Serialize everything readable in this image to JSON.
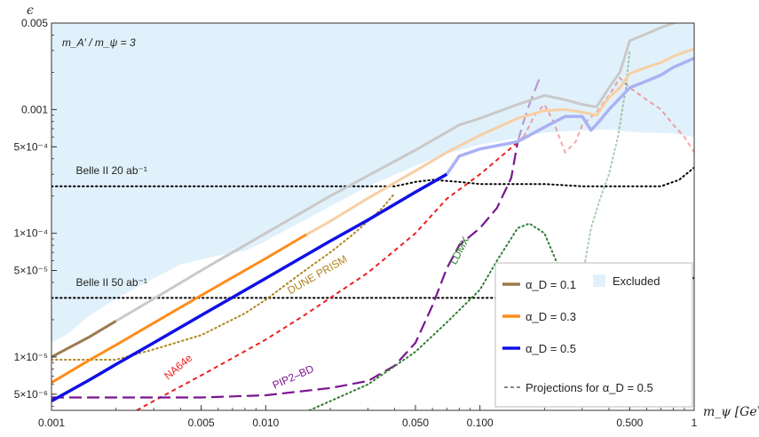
{
  "chart_data": {
    "type": "line",
    "xscale": "log",
    "yscale": "log",
    "xlim": [
      0.001,
      1
    ],
    "ylim": [
      3.7e-06,
      0.005
    ],
    "xlabel": "m_ψ [GeV]",
    "ylabel": "ϵ",
    "x_ticks": [
      {
        "v": 0.001,
        "label": "0.001"
      },
      {
        "v": 0.005,
        "label": "0.005"
      },
      {
        "v": 0.01,
        "label": "0.010"
      },
      {
        "v": 0.05,
        "label": "0.050"
      },
      {
        "v": 0.1,
        "label": "0.100"
      },
      {
        "v": 0.5,
        "label": "0.500"
      },
      {
        "v": 1,
        "label": "1"
      }
    ],
    "y_ticks": [
      {
        "v": 5e-06,
        "label": "5×10⁻⁶"
      },
      {
        "v": 1e-05,
        "label": "1×10⁻⁵"
      },
      {
        "v": 5e-05,
        "label": "5×10⁻⁵"
      },
      {
        "v": 0.0001,
        "label": "1×10⁻⁴"
      },
      {
        "v": 0.0005,
        "label": "5×10⁻⁴"
      },
      {
        "v": 0.001,
        "label": "0.001"
      },
      {
        "v": 0.005,
        "label": "0.005"
      }
    ],
    "mass_ratio_label": "m_A′ / m_ψ = 3",
    "excluded": {
      "color": "#e1f1fb",
      "boundary": [
        [
          0.001,
          1.3e-05
        ],
        [
          0.0012,
          1.55e-05
        ],
        [
          0.0015,
          2.15e-05
        ],
        [
          0.002,
          2.95e-05
        ],
        [
          0.003,
          4.3e-05
        ],
        [
          0.004,
          5.6e-05
        ],
        [
          0.006,
          6.6e-05
        ],
        [
          0.008,
          7.2e-05
        ],
        [
          0.01,
          8.65e-05
        ],
        [
          0.015,
          0.000126
        ],
        [
          0.02,
          0.000165
        ],
        [
          0.03,
          0.00024
        ],
        [
          0.05,
          0.00035
        ],
        [
          0.07,
          0.00044
        ],
        [
          0.1,
          0.00052
        ],
        [
          0.15,
          0.00059
        ],
        [
          0.2,
          0.00065
        ],
        [
          0.3,
          0.00068
        ],
        [
          0.4,
          0.00069
        ],
        [
          0.5,
          0.00066
        ],
        [
          0.6,
          0.00065
        ],
        [
          0.8,
          0.00064
        ],
        [
          1,
          0.0006
        ]
      ]
    },
    "series": [
      {
        "name": "α_D = 0.1",
        "color": "#9c7a4e",
        "faded_color": "#c9c9c9",
        "width": 3,
        "solid_until": 0.002,
        "points": [
          [
            0.001,
            1e-05
          ],
          [
            0.0015,
            1.45e-05
          ],
          [
            0.002,
            1.95e-05
          ],
          [
            0.003,
            2.95e-05
          ],
          [
            0.005,
            5e-05
          ],
          [
            0.01,
            0.0001
          ],
          [
            0.02,
            0.0002
          ],
          [
            0.05,
            0.00047
          ],
          [
            0.08,
            0.00075
          ],
          [
            0.1,
            0.00085
          ],
          [
            0.15,
            0.0011
          ],
          [
            0.2,
            0.0013
          ],
          [
            0.25,
            0.0012
          ],
          [
            0.3,
            0.0011
          ],
          [
            0.35,
            0.00105
          ],
          [
            0.4,
            0.0015
          ],
          [
            0.45,
            0.002
          ],
          [
            0.5,
            0.0036
          ],
          [
            0.6,
            0.0041
          ],
          [
            0.7,
            0.0046
          ],
          [
            0.8,
            0.005
          ],
          [
            1,
            0.0055
          ]
        ]
      },
      {
        "name": "α_D = 0.3",
        "color": "#ff8c1a",
        "faded_color": "#f7cfa4",
        "width": 3,
        "solid_until": 0.0155,
        "points": [
          [
            0.001,
            6.2e-06
          ],
          [
            0.0015,
            9.4e-06
          ],
          [
            0.002,
            1.25e-05
          ],
          [
            0.003,
            1.88e-05
          ],
          [
            0.005,
            3.15e-05
          ],
          [
            0.01,
            6.25e-05
          ],
          [
            0.015,
            9.45e-05
          ],
          [
            0.02,
            0.000125
          ],
          [
            0.03,
            0.000192
          ],
          [
            0.05,
            0.00032
          ],
          [
            0.07,
            0.00045
          ],
          [
            0.1,
            0.00062
          ],
          [
            0.15,
            0.00085
          ],
          [
            0.2,
            0.00098
          ],
          [
            0.25,
            0.001
          ],
          [
            0.3,
            0.00095
          ],
          [
            0.35,
            0.0009
          ],
          [
            0.4,
            0.00125
          ],
          [
            0.45,
            0.0015
          ],
          [
            0.5,
            0.00195
          ],
          [
            0.6,
            0.0022
          ],
          [
            0.7,
            0.0024
          ],
          [
            0.8,
            0.0027
          ],
          [
            1,
            0.0031
          ]
        ]
      },
      {
        "name": "α_D = 0.5",
        "color": "#1010e6",
        "faded_color": "#a9b2f4",
        "width": 3.5,
        "solid_until": 0.07,
        "points": [
          [
            0.001,
            4.4e-06
          ],
          [
            0.0015,
            6.5e-06
          ],
          [
            0.002,
            8.7e-06
          ],
          [
            0.003,
            1.3e-05
          ],
          [
            0.005,
            2.17e-05
          ],
          [
            0.01,
            4.32e-05
          ],
          [
            0.02,
            8.65e-05
          ],
          [
            0.03,
            0.000128
          ],
          [
            0.05,
            0.000215
          ],
          [
            0.07,
            0.0003
          ],
          [
            0.08,
            0.00042
          ],
          [
            0.1,
            0.00048
          ],
          [
            0.15,
            0.00055
          ],
          [
            0.2,
            0.00072
          ],
          [
            0.25,
            0.00088
          ],
          [
            0.3,
            0.00088
          ],
          [
            0.33,
            0.00068
          ],
          [
            0.36,
            0.0008
          ],
          [
            0.4,
            0.001
          ],
          [
            0.5,
            0.0015
          ],
          [
            0.6,
            0.0017
          ],
          [
            0.7,
            0.0019
          ],
          [
            0.8,
            0.0022
          ],
          [
            1,
            0.0026
          ]
        ]
      }
    ],
    "projections": [
      {
        "name": "Belle II 20 ab⁻¹",
        "color": "#000000",
        "style": "dotted",
        "points": [
          [
            0.001,
            0.00024
          ],
          [
            0.04,
            0.00024
          ],
          [
            0.05,
            0.00026
          ],
          [
            0.06,
            0.00027
          ],
          [
            0.08,
            0.00026
          ],
          [
            0.1,
            0.00025
          ],
          [
            0.15,
            0.00025
          ],
          [
            0.2,
            0.00025
          ],
          [
            0.3,
            0.00024
          ],
          [
            0.5,
            0.00024
          ],
          [
            0.7,
            0.00024
          ],
          [
            0.85,
            0.00027
          ],
          [
            1,
            0.00034
          ]
        ]
      },
      {
        "name": "Belle II 50 ab⁻¹",
        "color": "#000000",
        "style": "dotted",
        "points": [
          [
            0.001,
            3e-05
          ],
          [
            0.3,
            3e-05
          ],
          [
            0.45,
            3e-05
          ],
          [
            0.7,
            3e-05
          ],
          [
            0.85,
            3.4e-05
          ],
          [
            1,
            4.4e-05
          ]
        ]
      },
      {
        "name": "DUNE PRISM",
        "color": "#b08620",
        "style": "dotted",
        "points": [
          [
            0.001,
            9.5e-06
          ],
          [
            0.002,
            9.5e-06
          ],
          [
            0.003,
            1.15e-05
          ],
          [
            0.005,
            1.5e-05
          ],
          [
            0.008,
            2.25e-05
          ],
          [
            0.01,
            2.9e-05
          ],
          [
            0.015,
            4.9e-05
          ],
          [
            0.02,
            7e-05
          ],
          [
            0.025,
            9.5e-05
          ],
          [
            0.03,
            0.000125
          ],
          [
            0.035,
            0.00016
          ],
          [
            0.04,
            0.00021
          ]
        ]
      },
      {
        "name": "NA64e",
        "color": "#ee2020",
        "style": "dashed",
        "fade_after": 0.16,
        "points": [
          [
            0.0025,
            3.7e-06
          ],
          [
            0.003,
            4.4e-06
          ],
          [
            0.005,
            7.1e-06
          ],
          [
            0.007,
            9.8e-06
          ],
          [
            0.01,
            1.38e-05
          ],
          [
            0.015,
            2.15e-05
          ],
          [
            0.02,
            3e-05
          ],
          [
            0.03,
            4.8e-05
          ],
          [
            0.05,
            0.0001
          ],
          [
            0.07,
            0.00019
          ],
          [
            0.1,
            0.0003
          ],
          [
            0.14,
            0.00049
          ],
          [
            0.16,
            0.0006
          ],
          [
            0.18,
            0.0009
          ],
          [
            0.2,
            0.0011
          ],
          [
            0.22,
            0.0008
          ],
          [
            0.25,
            0.00045
          ],
          [
            0.28,
            0.00055
          ],
          [
            0.3,
            0.00075
          ],
          [
            0.35,
            0.00095
          ],
          [
            0.4,
            0.0013
          ],
          [
            0.45,
            0.0018
          ],
          [
            0.5,
            0.0015
          ],
          [
            0.6,
            0.0012
          ],
          [
            0.7,
            0.001
          ],
          [
            0.8,
            0.00075
          ],
          [
            0.9,
            0.0006
          ],
          [
            1,
            0.00045
          ]
        ]
      },
      {
        "name": "PIP2–BD",
        "color": "#7a1590",
        "style": "longdash",
        "fade_after": 0.15,
        "points": [
          [
            0.001,
            4.7e-06
          ],
          [
            0.005,
            4.7e-06
          ],
          [
            0.01,
            4.9e-06
          ],
          [
            0.02,
            5.6e-06
          ],
          [
            0.03,
            6.4e-06
          ],
          [
            0.04,
            8.5e-06
          ],
          [
            0.05,
            1.3e-05
          ],
          [
            0.06,
            2.6e-05
          ],
          [
            0.07,
            5.2e-05
          ],
          [
            0.08,
            8e-05
          ],
          [
            0.1,
            0.00011
          ],
          [
            0.12,
            0.00016
          ],
          [
            0.14,
            0.00028
          ],
          [
            0.15,
            0.00055
          ],
          [
            0.16,
            0.0008
          ],
          [
            0.17,
            0.0011
          ],
          [
            0.19,
            0.0018
          ]
        ]
      },
      {
        "name": "LDMX",
        "color": "#2f7d2f",
        "style": "dotted",
        "fade_after": 0.3,
        "points": [
          [
            0.016,
            3.7e-06
          ],
          [
            0.03,
            6e-06
          ],
          [
            0.05,
            1.1e-05
          ],
          [
            0.07,
            1.9e-05
          ],
          [
            0.1,
            3.5e-05
          ],
          [
            0.12,
            6e-05
          ],
          [
            0.15,
            0.00011
          ],
          [
            0.17,
            0.00012
          ],
          [
            0.2,
            0.0001
          ],
          [
            0.25,
            4e-05
          ],
          [
            0.27,
            2.2e-05
          ],
          [
            0.29,
            3e-05
          ],
          [
            0.31,
            6e-05
          ],
          [
            0.33,
            0.00011
          ],
          [
            0.36,
            0.00018
          ],
          [
            0.4,
            0.0003
          ],
          [
            0.44,
            0.0006
          ],
          [
            0.48,
            0.0015
          ],
          [
            0.5,
            0.003
          ]
        ]
      }
    ],
    "annotations": [
      {
        "text": "Belle II 20 ab⁻¹",
        "color": "#222222",
        "x": 0.0013,
        "y": 0.0003,
        "rotate": 0
      },
      {
        "text": "Belle II 50 ab⁻¹",
        "color": "#222222",
        "x": 0.0013,
        "y": 3.75e-05,
        "rotate": 0
      },
      {
        "text": "DUNE PRISM",
        "color": "#b08620",
        "x": 0.013,
        "y": 3.2e-05,
        "rotate": -30
      },
      {
        "text": "NA64e",
        "color": "#ee2020",
        "x": 0.0035,
        "y": 6.5e-06,
        "rotate": -40
      },
      {
        "text": "PIP2–BD",
        "color": "#7a1590",
        "x": 0.011,
        "y": 5.5e-06,
        "rotate": -24
      },
      {
        "text": "LDMX",
        "color": "#2f7d2f",
        "x": 0.077,
        "y": 5.5e-05,
        "rotate": -62
      }
    ],
    "legend": {
      "placement": "bottom-right",
      "entries": [
        {
          "label": "α_D = 0.1",
          "color": "#9c7a4e",
          "kind": "line"
        },
        {
          "label": "α_D = 0.3",
          "color": "#ff8c1a",
          "kind": "line"
        },
        {
          "label": "α_D = 0.5",
          "color": "#1010e6",
          "kind": "line"
        },
        {
          "label": "Excluded",
          "color": "#e1f1fb",
          "kind": "box"
        },
        {
          "label": "Projections for α_D = 0.5",
          "color": "#888888",
          "kind": "dash"
        }
      ]
    }
  }
}
